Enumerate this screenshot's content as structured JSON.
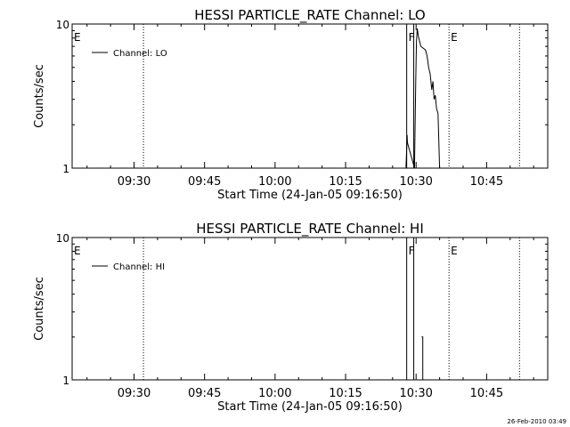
{
  "footer": {
    "timestamp": "26-Feb-2010 03:49"
  },
  "chart_data": [
    {
      "type": "line",
      "title": "HESSI PARTICLE_RATE Channel: LO",
      "xlabel": "Start Time (24-Jan-05 09:16:50)",
      "ylabel": "Counts/sec",
      "y_scale": "log",
      "ylim": [
        1,
        10
      ],
      "y_ticks": [
        {
          "value": 1,
          "label": "1"
        },
        {
          "value": 10,
          "label": "10"
        }
      ],
      "xlim": [
        "09:16:50",
        "10:58:00"
      ],
      "x_ticks": [
        "09:30",
        "09:45",
        "10:00",
        "10:15",
        "10:30",
        "10:45"
      ],
      "legend": {
        "position": "top-left",
        "entries": [
          "Channel: LO"
        ]
      },
      "markers": [
        {
          "time": "09:16:50",
          "label": "E",
          "style": "dotted"
        },
        {
          "time": "09:32:00",
          "label": "",
          "style": "dotted"
        },
        {
          "time": "10:28:00",
          "label": "F",
          "style": "solid"
        },
        {
          "time": "10:29:30",
          "label": "",
          "style": "solid"
        },
        {
          "time": "10:37:00",
          "label": "E",
          "style": "dotted"
        },
        {
          "time": "10:52:00",
          "label": "",
          "style": "dotted"
        }
      ],
      "series": [
        {
          "name": "Channel: LO",
          "points": [
            [
              "10:27:50",
              1.0
            ],
            [
              "10:27:58",
              1.3
            ],
            [
              "10:28:05",
              1.7
            ],
            [
              "10:28:10",
              1.5
            ],
            [
              "10:29:40",
              1.0
            ],
            [
              "10:29:55",
              4.0
            ],
            [
              "10:30:05",
              7.5
            ],
            [
              "10:30:15",
              9.3
            ],
            [
              "10:30:30",
              8.2
            ],
            [
              "10:31:00",
              7.0
            ],
            [
              "10:31:30",
              6.8
            ],
            [
              "10:32:00",
              6.6
            ],
            [
              "10:32:20",
              6.0
            ],
            [
              "10:32:40",
              5.0
            ],
            [
              "10:33:00",
              4.5
            ],
            [
              "10:33:20",
              3.5
            ],
            [
              "10:33:35",
              4.0
            ],
            [
              "10:33:50",
              3.0
            ],
            [
              "10:34:05",
              3.2
            ],
            [
              "10:34:20",
              2.6
            ],
            [
              "10:34:40",
              2.4
            ],
            [
              "10:35:00",
              1.0
            ]
          ]
        }
      ]
    },
    {
      "type": "line",
      "title": "HESSI PARTICLE_RATE Channel: HI",
      "xlabel": "Start Time (24-Jan-05 09:16:50)",
      "ylabel": "Counts/sec",
      "y_scale": "log",
      "ylim": [
        1,
        10
      ],
      "y_ticks": [
        {
          "value": 1,
          "label": "1"
        },
        {
          "value": 10,
          "label": "10"
        }
      ],
      "xlim": [
        "09:16:50",
        "10:58:00"
      ],
      "x_ticks": [
        "09:30",
        "09:45",
        "10:00",
        "10:15",
        "10:30",
        "10:45"
      ],
      "legend": {
        "position": "top-left",
        "entries": [
          "Channel: HI"
        ]
      },
      "markers": [
        {
          "time": "09:16:50",
          "label": "E",
          "style": "dotted"
        },
        {
          "time": "09:32:00",
          "label": "",
          "style": "dotted"
        },
        {
          "time": "10:28:00",
          "label": "F",
          "style": "solid"
        },
        {
          "time": "10:29:30",
          "label": "",
          "style": "solid"
        },
        {
          "time": "10:37:00",
          "label": "E",
          "style": "dotted"
        },
        {
          "time": "10:52:00",
          "label": "",
          "style": "dotted"
        }
      ],
      "series": [
        {
          "name": "Channel: HI",
          "points": [
            [
              "10:31:10",
              2.0
            ],
            [
              "10:31:25",
              2.0
            ],
            [
              "10:31:25",
              1.0
            ]
          ]
        }
      ]
    }
  ]
}
